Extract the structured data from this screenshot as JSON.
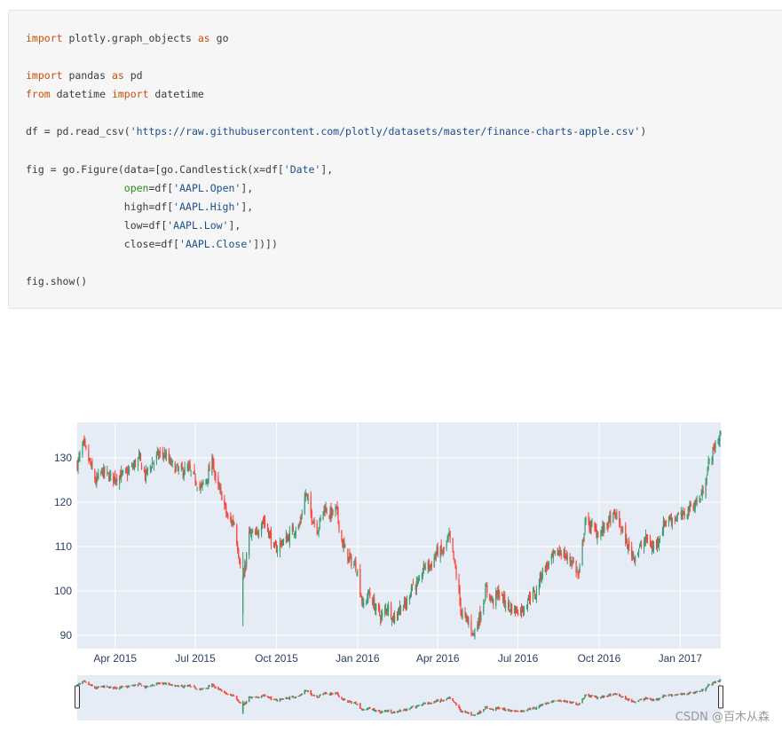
{
  "code": {
    "lines": [
      [
        {
          "t": "import",
          "c": "kw"
        },
        {
          "t": " plotly.graph_objects "
        },
        {
          "t": "as",
          "c": "kw"
        },
        {
          "t": " go"
        }
      ],
      [],
      [
        {
          "t": "import",
          "c": "kw"
        },
        {
          "t": " pandas "
        },
        {
          "t": "as",
          "c": "kw"
        },
        {
          "t": " pd"
        }
      ],
      [
        {
          "t": "from",
          "c": "kw"
        },
        {
          "t": " datetime "
        },
        {
          "t": "import",
          "c": "kw"
        },
        {
          "t": " datetime"
        }
      ],
      [],
      [
        {
          "t": "df = pd.read_csv("
        },
        {
          "t": "'https://raw.githubusercontent.com/plotly/datasets/master/finance-charts-apple.csv'",
          "c": "str"
        },
        {
          "t": ")"
        }
      ],
      [],
      [
        {
          "t": "fig = go.Figure(data=[go.Candlestick(x=df["
        },
        {
          "t": "'Date'",
          "c": "str"
        },
        {
          "t": "],"
        }
      ],
      [
        {
          "t": "                "
        },
        {
          "t": "open",
          "c": "arg"
        },
        {
          "t": "=df["
        },
        {
          "t": "'AAPL.Open'",
          "c": "str"
        },
        {
          "t": "],"
        }
      ],
      [
        {
          "t": "                high=df["
        },
        {
          "t": "'AAPL.High'",
          "c": "str"
        },
        {
          "t": "],"
        }
      ],
      [
        {
          "t": "                low=df["
        },
        {
          "t": "'AAPL.Low'",
          "c": "str"
        },
        {
          "t": "],"
        }
      ],
      [
        {
          "t": "                close=df["
        },
        {
          "t": "'AAPL.Close'",
          "c": "str"
        },
        {
          "t": "])])"
        }
      ],
      [],
      [
        {
          "t": "fig.show()"
        }
      ]
    ]
  },
  "chart_data": {
    "type": "candlestick",
    "title": "",
    "xlabel": "",
    "ylabel": "",
    "x_range": [
      "2015-02-17",
      "2017-02-16"
    ],
    "ylim": [
      87,
      138
    ],
    "y_ticks": [
      90,
      100,
      110,
      120,
      130
    ],
    "x_tick_labels": [
      "Apr 2015",
      "Jul 2015",
      "Oct 2015",
      "Jan 2016",
      "Apr 2016",
      "Jul 2016",
      "Oct 2016",
      "Jan 2017"
    ],
    "x_tick_dates": [
      "2015-04-01",
      "2015-07-01",
      "2015-10-01",
      "2016-01-01",
      "2016-04-01",
      "2016-07-01",
      "2016-10-01",
      "2017-01-01"
    ],
    "increasing_color": "#3d9970",
    "decreasing_color": "#ff4136",
    "plot_bgcolor": "#e5ecf6",
    "grid": true,
    "rangeslider": true,
    "close_trend": [
      [
        "2015-02-17",
        128.5
      ],
      [
        "2015-02-24",
        133.0
      ],
      [
        "2015-03-03",
        129.0
      ],
      [
        "2015-03-10",
        124.5
      ],
      [
        "2015-03-17",
        127.0
      ],
      [
        "2015-03-24",
        126.0
      ],
      [
        "2015-03-31",
        125.5
      ],
      [
        "2015-04-07",
        126.0
      ],
      [
        "2015-04-14",
        126.5
      ],
      [
        "2015-04-21",
        128.0
      ],
      [
        "2015-04-28",
        130.0
      ],
      [
        "2015-05-05",
        126.0
      ],
      [
        "2015-05-12",
        128.5
      ],
      [
        "2015-05-19",
        130.5
      ],
      [
        "2015-05-26",
        131.0
      ],
      [
        "2015-06-02",
        129.0
      ],
      [
        "2015-06-09",
        127.5
      ],
      [
        "2015-06-16",
        127.0
      ],
      [
        "2015-06-23",
        127.5
      ],
      [
        "2015-06-30",
        125.5
      ],
      [
        "2015-07-07",
        123.0
      ],
      [
        "2015-07-14",
        125.5
      ],
      [
        "2015-07-21",
        129.5
      ],
      [
        "2015-07-24",
        124.5
      ],
      [
        "2015-07-31",
        121.5
      ],
      [
        "2015-08-07",
        116.0
      ],
      [
        "2015-08-14",
        115.5
      ],
      [
        "2015-08-21",
        105.8
      ],
      [
        "2015-08-25",
        103.1
      ],
      [
        "2015-08-31",
        112.8
      ],
      [
        "2015-09-08",
        112.3
      ],
      [
        "2015-09-15",
        116.3
      ],
      [
        "2015-09-22",
        113.4
      ],
      [
        "2015-09-29",
        109.1
      ],
      [
        "2015-10-06",
        110.8
      ],
      [
        "2015-10-13",
        111.8
      ],
      [
        "2015-10-20",
        113.8
      ],
      [
        "2015-10-27",
        114.6
      ],
      [
        "2015-11-03",
        122.0
      ],
      [
        "2015-11-10",
        116.8
      ],
      [
        "2015-11-17",
        114.0
      ],
      [
        "2015-11-24",
        118.9
      ],
      [
        "2015-12-01",
        117.3
      ],
      [
        "2015-12-08",
        118.2
      ],
      [
        "2015-12-15",
        110.5
      ],
      [
        "2015-12-22",
        107.3
      ],
      [
        "2015-12-31",
        105.3
      ],
      [
        "2016-01-07",
        96.5
      ],
      [
        "2016-01-14",
        99.5
      ],
      [
        "2016-01-21",
        96.3
      ],
      [
        "2016-01-28",
        94.1
      ],
      [
        "2016-02-04",
        96.6
      ],
      [
        "2016-02-11",
        93.7
      ],
      [
        "2016-02-18",
        96.3
      ],
      [
        "2016-02-25",
        96.8
      ],
      [
        "2016-03-03",
        101.5
      ],
      [
        "2016-03-10",
        101.2
      ],
      [
        "2016-03-17",
        105.8
      ],
      [
        "2016-03-24",
        105.7
      ],
      [
        "2016-03-31",
        108.9
      ],
      [
        "2016-04-07",
        108.7
      ],
      [
        "2016-04-14",
        112.1
      ],
      [
        "2016-04-21",
        105.0
      ],
      [
        "2016-04-28",
        94.8
      ],
      [
        "2016-05-05",
        93.2
      ],
      [
        "2016-05-12",
        90.3
      ],
      [
        "2016-05-19",
        94.6
      ],
      [
        "2016-05-26",
        100.4
      ],
      [
        "2016-06-02",
        97.7
      ],
      [
        "2016-06-09",
        99.6
      ],
      [
        "2016-06-16",
        97.5
      ],
      [
        "2016-06-23",
        96.1
      ],
      [
        "2016-06-30",
        95.6
      ],
      [
        "2016-07-07",
        96.0
      ],
      [
        "2016-07-14",
        98.8
      ],
      [
        "2016-07-21",
        99.4
      ],
      [
        "2016-07-28",
        104.3
      ],
      [
        "2016-08-04",
        105.9
      ],
      [
        "2016-08-11",
        107.9
      ],
      [
        "2016-08-18",
        109.1
      ],
      [
        "2016-08-25",
        107.4
      ],
      [
        "2016-09-01",
        106.7
      ],
      [
        "2016-09-08",
        103.1
      ],
      [
        "2016-09-15",
        115.6
      ],
      [
        "2016-09-22",
        114.6
      ],
      [
        "2016-09-29",
        113.0
      ],
      [
        "2016-10-06",
        113.9
      ],
      [
        "2016-10-13",
        116.0
      ],
      [
        "2016-10-20",
        117.1
      ],
      [
        "2016-10-27",
        113.7
      ],
      [
        "2016-11-03",
        109.8
      ],
      [
        "2016-11-10",
        107.8
      ],
      [
        "2016-11-17",
        109.9
      ],
      [
        "2016-11-24",
        111.8
      ],
      [
        "2016-12-01",
        109.5
      ],
      [
        "2016-12-08",
        112.1
      ],
      [
        "2016-12-15",
        115.8
      ],
      [
        "2016-12-22",
        116.3
      ],
      [
        "2016-12-29",
        116.7
      ],
      [
        "2017-01-05",
        117.0
      ],
      [
        "2017-01-12",
        119.0
      ],
      [
        "2017-01-19",
        119.8
      ],
      [
        "2017-01-26",
        121.9
      ],
      [
        "2017-02-02",
        128.5
      ],
      [
        "2017-02-09",
        132.4
      ],
      [
        "2017-02-16",
        135.3
      ]
    ],
    "anomalies": [
      {
        "date": "2015-08-24",
        "low": 92.0,
        "open": 94.9,
        "close": 103.1,
        "high": 108.8
      }
    ]
  },
  "watermark": "CSDN @百木从森"
}
